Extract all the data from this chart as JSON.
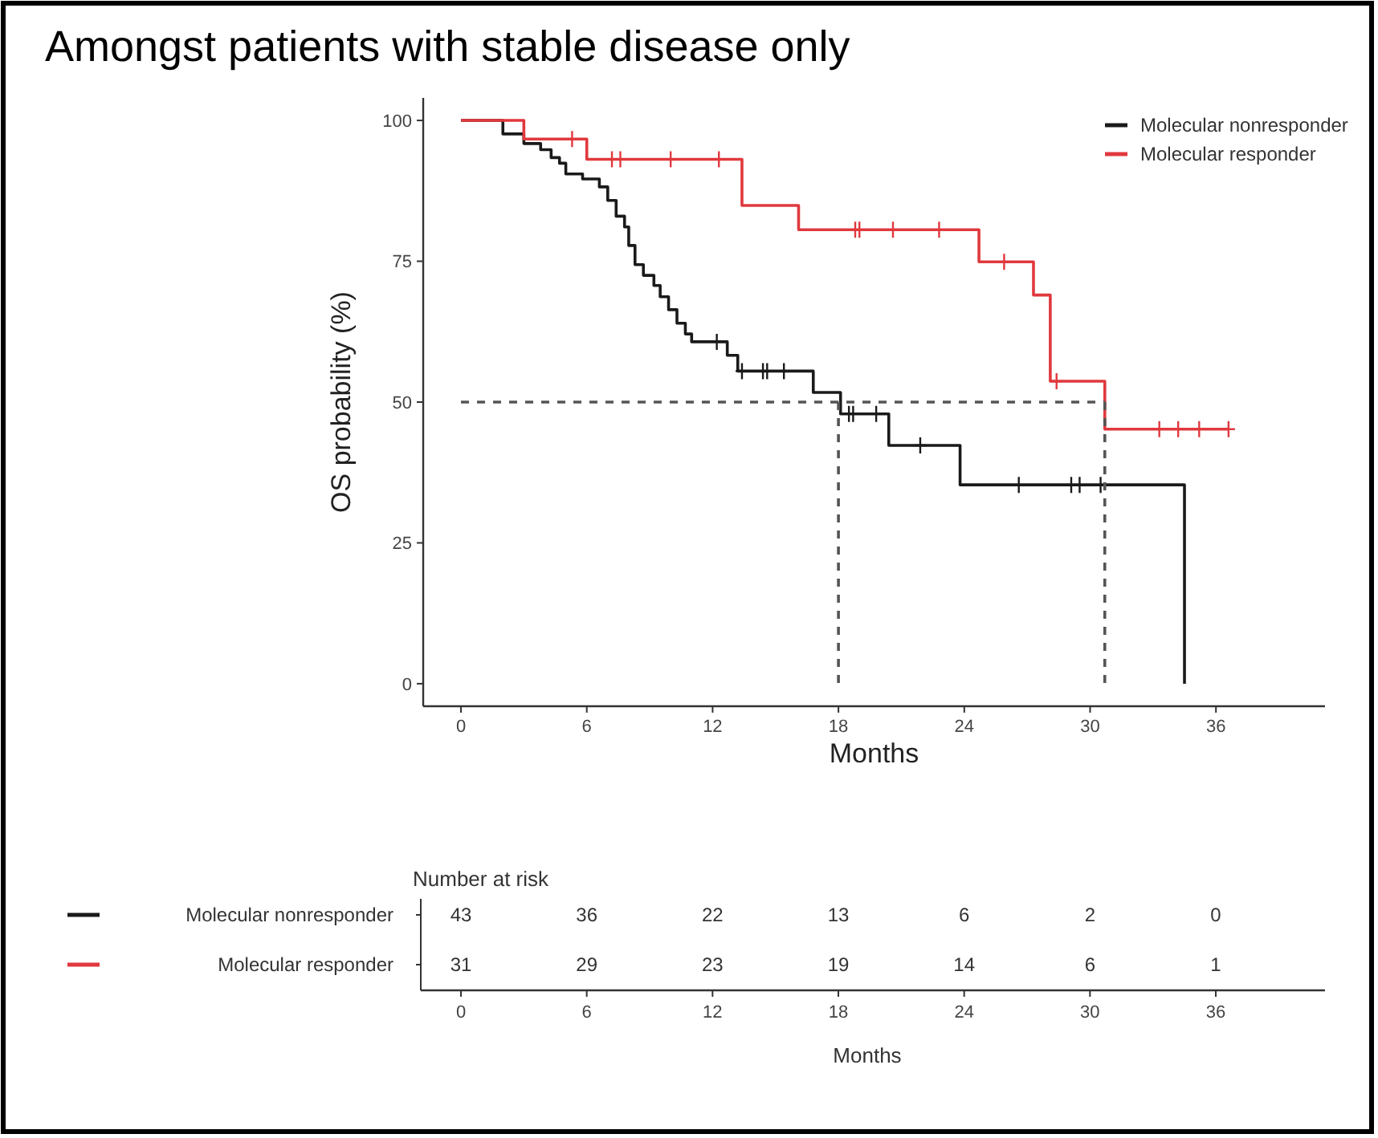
{
  "chart_data": [
    {
      "type": "step",
      "title": "Amongst patients with stable disease only",
      "xlabel": "Months",
      "ylabel": "OS probability (%)",
      "xlim": [
        -1.8,
        41.2
      ],
      "ylim": [
        -4,
        104
      ],
      "xticks": [
        0,
        6,
        12,
        18,
        24,
        30,
        36
      ],
      "yticks": [
        0,
        25,
        50,
        75,
        100
      ],
      "legend": "top right",
      "series": [
        {
          "name": "Molecular nonresponder",
          "color": "#1a1a1a",
          "type": "step",
          "x": [
            0,
            2.0,
            3.0,
            3.8,
            4.3,
            4.7,
            5.0,
            5.8,
            6.6,
            7.0,
            7.4,
            7.8,
            8.0,
            8.3,
            8.7,
            9.2,
            9.5,
            9.9,
            10.3,
            10.7,
            11.0,
            12.7,
            13.2,
            16.8,
            18.1,
            20.4,
            23.8,
            34.5
          ],
          "values": [
            100,
            97.6,
            95.9,
            94.8,
            93.4,
            92.4,
            90.5,
            89.6,
            88.2,
            85.8,
            83,
            81.1,
            77.8,
            74.4,
            72.5,
            70.7,
            68.7,
            66.4,
            64,
            62.1,
            60.7,
            58.3,
            55.5,
            51.7,
            47.9,
            42.3,
            35.3,
            0
          ]
        },
        {
          "name": "Molecular responder",
          "color": "#e0393e",
          "type": "step",
          "x": [
            0,
            3.0,
            6.0,
            13.4,
            16.1,
            24.7,
            27.3,
            28.1,
            30.7,
            36.6
          ],
          "values": [
            100,
            96.7,
            93.1,
            84.9,
            80.6,
            74.9,
            69.0,
            53.7,
            45.2,
            45.2
          ]
        },
        {
          "color": "#1a1a1a",
          "type": "scatter",
          "marker": "cross",
          "x": [
            12.2,
            13.4,
            14.4,
            14.6,
            15.4,
            18.5,
            18.7,
            19.8,
            21.9,
            26.6,
            29.1,
            29.5,
            30.5
          ],
          "values": [
            60.7,
            55.5,
            55.5,
            55.5,
            55.5,
            47.9,
            47.9,
            47.9,
            42.3,
            35.3,
            35.3,
            35.3,
            35.3
          ]
        },
        {
          "color": "#e0393e",
          "type": "scatter",
          "marker": "cross",
          "x": [
            5.3,
            7.2,
            7.6,
            10.0,
            12.3,
            18.8,
            19.0,
            20.6,
            22.8,
            25.9,
            28.4,
            33.3,
            34.2,
            35.2,
            36.6
          ],
          "values": [
            96.7,
            93.1,
            93.1,
            93.1,
            93.1,
            80.6,
            80.6,
            80.6,
            80.6,
            74.9,
            53.7,
            45.2,
            45.2,
            45.2,
            45.2
          ]
        },
        {
          "color": "#555555",
          "type": "line",
          "line_style": "dashed",
          "x": [
            0,
            30.7
          ],
          "values": [
            50,
            50
          ]
        },
        {
          "color": "#555555",
          "type": "line",
          "line_style": "dashed",
          "x": [
            18.0,
            18.0
          ],
          "values": [
            50,
            0
          ]
        },
        {
          "color": "#555555",
          "type": "line",
          "line_style": "dashed",
          "x": [
            30.7,
            30.7
          ],
          "values": [
            50,
            0
          ]
        }
      ]
    },
    {
      "type": "heatmap",
      "title": "Number at risk",
      "data_labels": true,
      "xlabel": "Months",
      "categories": [
        "0",
        "6",
        "12",
        "18",
        "24",
        "30",
        "36"
      ],
      "y_categories": [
        "Molecular nonresponder",
        "Molecular responder"
      ],
      "cells": [
        [
          43,
          36,
          22,
          13,
          6,
          2,
          0
        ],
        [
          31,
          29,
          23,
          19,
          14,
          6,
          1
        ]
      ]
    }
  ]
}
